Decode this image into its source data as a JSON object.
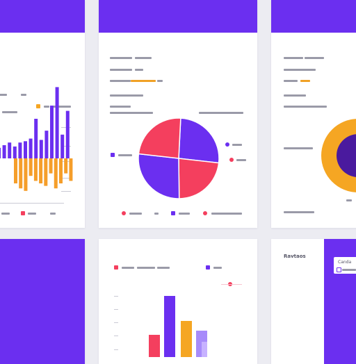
{
  "colors": {
    "purple": "#6b2ff0",
    "deep_purple": "#4a1a9e",
    "red": "#f43f5e",
    "orange": "#f59e2a",
    "light_purple": "#c7b2ff",
    "gray_text": "#9a9aa8"
  },
  "cards": [
    {
      "id": "bar-chart-card",
      "chart": "bar"
    },
    {
      "id": "pie-chart-card",
      "chart": "pie"
    },
    {
      "id": "donut-chart-card",
      "chart": "donut"
    },
    {
      "id": "purple-panel-card"
    },
    {
      "id": "column-chart-card",
      "chart": "bar"
    },
    {
      "id": "tab-panel-card"
    }
  ],
  "panel": {
    "heading": "Ravtaos",
    "tab_label": "Canda"
  },
  "chart_data": [
    {
      "type": "bar",
      "series": [
        {
          "name": "",
          "color": "#6b2ff0",
          "values": [
            8,
            10,
            12,
            9,
            12,
            13,
            15,
            30,
            14,
            21,
            40,
            54,
            18,
            36
          ]
        },
        {
          "name": "",
          "color": "#f59e2a",
          "values": [
            -20,
            -24,
            -26,
            -14,
            -18,
            -20,
            -22,
            -12,
            -24,
            -20,
            -12,
            -18
          ]
        }
      ]
    },
    {
      "type": "pie",
      "values": [
        26,
        23,
        27,
        24
      ],
      "colors": [
        "#6b2ff0",
        "#f43f5e",
        "#6b2ff0",
        "#f43f5e"
      ]
    },
    {
      "type": "pie",
      "values": [
        100
      ],
      "colors": [
        "#f5a623",
        "#4a1a9e"
      ]
    },
    {
      "type": "bar",
      "values": [
        32,
        88,
        52,
        38,
        22
      ],
      "colors": [
        "#f43f5e",
        "#6b2ff0",
        "#f5a623",
        "#a78bfa",
        "#c7b2ff"
      ]
    }
  ]
}
